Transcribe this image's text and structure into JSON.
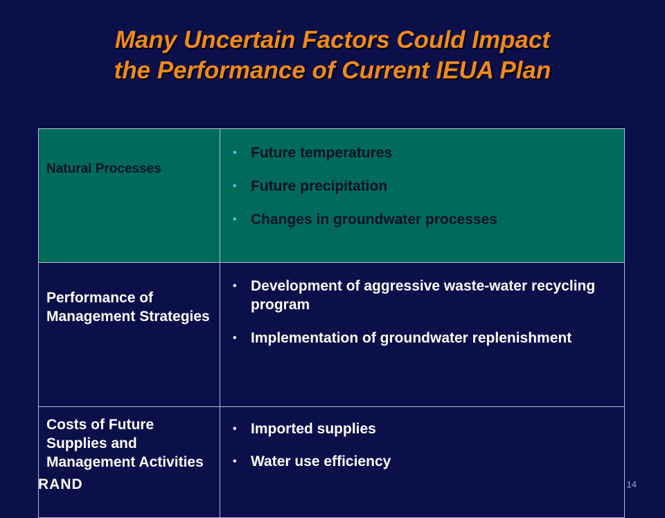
{
  "slide": {
    "title_lines": [
      "Many Uncertain Factors Could Impact",
      "the Performance of Current IEUA Plan"
    ],
    "rows": [
      {
        "category": "Natural Processes",
        "items": [
          "Future temperatures",
          "Future precipitation",
          "Changes in groundwater processes"
        ]
      },
      {
        "category": "Performance of Management Strategies",
        "items": [
          "Development of aggressive waste-water recycling program",
          "Implementation of groundwater replenishment"
        ]
      },
      {
        "category": "Costs of Future Supplies and Management Activities",
        "items": [
          "Imported supplies",
          "Water use efficiency"
        ]
      }
    ],
    "bullet_char": "•",
    "logo_text": "RAND",
    "page_number": "14"
  },
  "colors": {
    "background": "#0b0f4a",
    "title": "#f08a1a",
    "highlight_row": "#006b5a"
  }
}
